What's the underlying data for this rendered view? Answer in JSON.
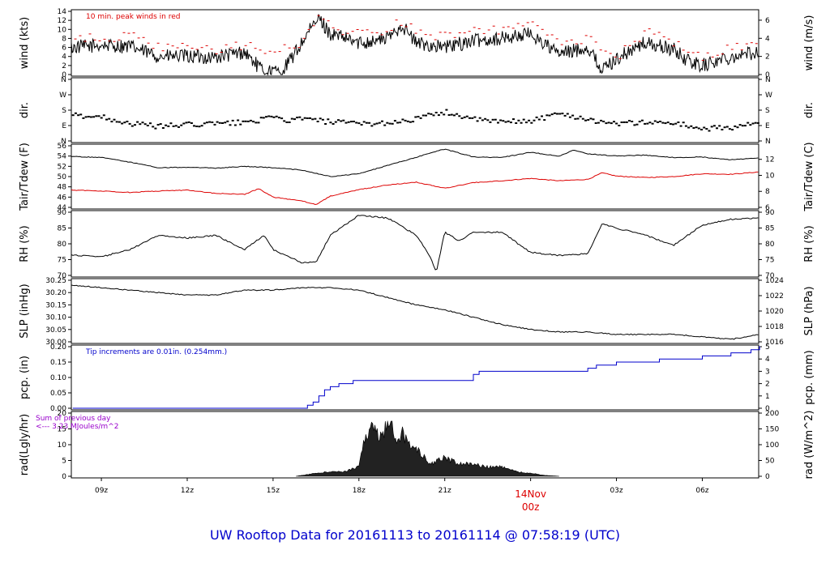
{
  "footer_title": "UW Rooftop Data for 20161113  to  20161114 @ 07:58:19  (UTC)",
  "colors": {
    "black": "#000000",
    "red": "#dd0000",
    "blue": "#0000cc",
    "purple": "#9900cc",
    "title_blue": "#0000cc"
  },
  "time_axis": {
    "tick_labels": [
      "09z",
      "12z",
      "15z",
      "18z",
      "21z",
      "03z",
      "06z"
    ],
    "tick_hours": [
      9,
      12,
      15,
      18,
      21,
      27,
      30
    ],
    "date_marker": {
      "date": "14Nov",
      "hour": "00z"
    },
    "range_hours": [
      7.95,
      31.97
    ]
  },
  "chart_data": [
    {
      "id": "wind",
      "type": "line",
      "ylabel_left": "wind (kts)",
      "ylabel_right": "wind (m/s)",
      "ylim": [
        0,
        14
      ],
      "left_ticks": [
        "0",
        "2",
        "4",
        "6",
        "8",
        "10",
        "12",
        "14"
      ],
      "right_ticks": [
        "0",
        "2",
        "4",
        "6"
      ],
      "annotation": "10 min. peak winds in red",
      "series": [
        {
          "color": "#000000",
          "x_hours": [
            8,
            9,
            10,
            11,
            12,
            13,
            14,
            14.6,
            15.3,
            15.8,
            16.2,
            16.6,
            17,
            18,
            19,
            19.5,
            20,
            21,
            22,
            23,
            24,
            25,
            26,
            26.5,
            27,
            28,
            29,
            29.5,
            30,
            31,
            32
          ],
          "values": [
            6,
            6.5,
            6.2,
            4,
            4,
            3.8,
            5,
            1,
            0.5,
            5,
            9,
            12.5,
            9,
            7,
            8,
            11,
            7,
            6,
            7.5,
            8,
            9,
            4.5,
            6,
            1,
            3.5,
            7,
            5.5,
            3,
            2,
            4,
            5
          ]
        },
        {
          "color": "#dd0000",
          "style": "dash",
          "x_hours": [
            8,
            9,
            10,
            11,
            12,
            13,
            14,
            15,
            16,
            16.6,
            17,
            18,
            19,
            19.5,
            20,
            21,
            22,
            23,
            24,
            25,
            26,
            27,
            28,
            29,
            30,
            31,
            32
          ],
          "values": [
            8,
            8,
            8.5,
            6,
            6,
            5.5,
            6.5,
            5,
            7,
            14,
            10,
            9,
            10,
            12,
            9,
            8.5,
            9.5,
            10,
            11,
            7,
            8,
            4,
            9.5,
            7,
            4,
            6,
            7
          ]
        }
      ]
    },
    {
      "id": "dir",
      "type": "scatter",
      "ylabel_left": "dir.",
      "ylabel_right": "dir.",
      "ylim": [
        0,
        360
      ],
      "left_ticks": [
        "N",
        "E",
        "S",
        "W",
        "N"
      ],
      "right_ticks": [
        "N",
        "E",
        "S",
        "W",
        "N"
      ],
      "series": [
        {
          "color": "#000000",
          "x_hours": [
            8,
            9,
            10,
            11,
            12,
            13,
            14,
            15,
            15.5,
            16,
            17,
            18,
            19,
            20,
            21,
            22,
            23,
            24,
            25,
            26,
            27,
            28,
            29,
            30,
            31,
            32
          ],
          "values": [
            150,
            140,
            100,
            85,
            95,
            100,
            110,
            135,
            120,
            130,
            110,
            100,
            105,
            130,
            170,
            125,
            110,
            120,
            160,
            125,
            100,
            110,
            105,
            70,
            80,
            110
          ]
        }
      ]
    },
    {
      "id": "temp",
      "type": "line",
      "ylabel_left": "Tair/Tdew (F)",
      "ylabel_right": "Tair/Tdew (C)",
      "ylim": [
        42.8,
        56
      ],
      "left_ticks": [
        "44",
        "46",
        "48",
        "50",
        "52",
        "54",
        "56"
      ],
      "right_ticks": [
        "6",
        "8",
        "10",
        "12"
      ],
      "series": [
        {
          "color": "#000000",
          "x_hours": [
            8,
            9,
            10,
            11,
            12,
            13,
            14,
            15,
            16,
            17,
            18,
            19,
            20,
            20.5,
            21,
            22,
            23,
            24,
            25,
            25.5,
            26,
            27,
            28,
            29,
            30,
            31,
            32
          ],
          "values": [
            53.7,
            53.5,
            52.5,
            51.3,
            51.4,
            51.2,
            51.6,
            51.3,
            50.8,
            49.4,
            50,
            51.8,
            53.5,
            54.5,
            55.3,
            53.6,
            53.5,
            54.6,
            53.8,
            55.1,
            54.3,
            53.8,
            54,
            53.5,
            53.6,
            53,
            53.4
          ]
        },
        {
          "color": "#dd0000",
          "x_hours": [
            8,
            9,
            10,
            11,
            12,
            13,
            14,
            14.5,
            15,
            16,
            16.5,
            17,
            18,
            19,
            20,
            21,
            22,
            23,
            24,
            25,
            26,
            26.5,
            27,
            28,
            29,
            30,
            31,
            32
          ],
          "values": [
            46.5,
            46.3,
            46,
            46.3,
            46.5,
            45.8,
            45.6,
            46.8,
            45,
            44.2,
            43.4,
            45.2,
            46.6,
            47.6,
            48.2,
            46.9,
            48.1,
            48.5,
            49,
            48.5,
            48.8,
            50.2,
            49.5,
            49.2,
            49.4,
            50,
            49.9,
            50.4
          ]
        }
      ]
    },
    {
      "id": "rh",
      "type": "line",
      "ylabel_left": "RH (%)",
      "ylabel_right": "RH (%)",
      "ylim": [
        70,
        92
      ],
      "left_ticks": [
        "70",
        "75",
        "80",
        "85",
        "90"
      ],
      "right_ticks": [
        "70",
        "75",
        "80",
        "85",
        "90"
      ],
      "series": [
        {
          "color": "#000000",
          "x_hours": [
            8,
            9,
            10,
            11,
            12,
            13,
            14,
            14.7,
            15,
            16,
            16.5,
            17,
            18,
            19,
            20,
            20.5,
            20.7,
            21,
            21.5,
            22,
            23,
            24,
            25,
            26,
            26.5,
            27,
            28,
            29,
            30,
            31,
            32
          ],
          "values": [
            77,
            76.5,
            79,
            84,
            83,
            84,
            79,
            84,
            79,
            74.5,
            74.5,
            84,
            91,
            90,
            84,
            76.5,
            71,
            85,
            82,
            85,
            85,
            78,
            77,
            77.5,
            88,
            86.5,
            84,
            80.5,
            87.5,
            89.5,
            90
          ]
        }
      ]
    },
    {
      "id": "slp",
      "type": "line",
      "ylabel_left": "SLP (inHg)",
      "ylabel_right": "SLP (hPa)",
      "ylim": [
        30,
        30.25
      ],
      "left_ticks": [
        "30.00",
        "30.05",
        "30.10",
        "30.15",
        "30.20",
        "30.25"
      ],
      "right_ticks": [
        "1016",
        "1018",
        "1020",
        "1022",
        "1024"
      ],
      "series": [
        {
          "color": "#000000",
          "x_hours": [
            8,
            9,
            10,
            11,
            12,
            13,
            14,
            15,
            16,
            17,
            18,
            19,
            20,
            21,
            22,
            23,
            24,
            25,
            26,
            27,
            28,
            29,
            30,
            31,
            32
          ],
          "values": [
            30.23,
            30.22,
            30.21,
            30.2,
            30.19,
            30.19,
            30.21,
            30.21,
            30.22,
            30.22,
            30.21,
            30.18,
            30.15,
            30.13,
            30.1,
            30.07,
            30.05,
            30.04,
            30.04,
            30.03,
            30.03,
            30.03,
            30.02,
            30.01,
            30.03
          ]
        }
      ]
    },
    {
      "id": "pcp",
      "type": "line",
      "ylabel_left": "pcp. (in)",
      "ylabel_right": "pcp. (mm)",
      "ylim": [
        0,
        0.2
      ],
      "left_ticks": [
        "0.00",
        "0.05",
        "0.10",
        "0.15",
        "0.20"
      ],
      "right_ticks": [
        "0",
        "1",
        "2",
        "3",
        "4",
        "5"
      ],
      "annotation": "Tip increments are 0.01in. (0.254mm.)",
      "series": [
        {
          "color": "#0000cc",
          "step": true,
          "x_hours": [
            8,
            16.2,
            16.4,
            16.6,
            16.8,
            17,
            17.3,
            17.8,
            22,
            22.2,
            26,
            26.3,
            27,
            28.5,
            30,
            31,
            31.7,
            32
          ],
          "values": [
            0,
            0.01,
            0.02,
            0.04,
            0.06,
            0.07,
            0.08,
            0.09,
            0.11,
            0.12,
            0.13,
            0.14,
            0.15,
            0.16,
            0.17,
            0.18,
            0.19,
            0.2
          ]
        }
      ]
    },
    {
      "id": "rad",
      "type": "area",
      "ylabel_left": "rad(Lgly/hr)",
      "ylabel_right": "rad (W/m^2)",
      "ylim": [
        0,
        20
      ],
      "left_ticks": [
        "0",
        "5",
        "10",
        "15",
        "20"
      ],
      "right_ticks": [
        "0",
        "50",
        "100",
        "150",
        "200"
      ],
      "annotation": "Sum of previous day\n<--- 3.23 MJoules/m^2",
      "series": [
        {
          "color": "#000000",
          "x_hours": [
            15.8,
            16,
            16.5,
            17,
            17.5,
            18,
            18.2,
            18.5,
            18.8,
            19,
            19.3,
            19.5,
            19.8,
            20,
            20.5,
            21,
            21.5,
            22,
            22.5,
            23,
            23.5,
            24,
            24.5,
            25
          ],
          "values": [
            0,
            0.3,
            1,
            1.5,
            1.5,
            3,
            12,
            17,
            12,
            19,
            12,
            14,
            9,
            9,
            4,
            6,
            4,
            4,
            3,
            3,
            1.5,
            1,
            0.3,
            0
          ]
        }
      ]
    }
  ]
}
